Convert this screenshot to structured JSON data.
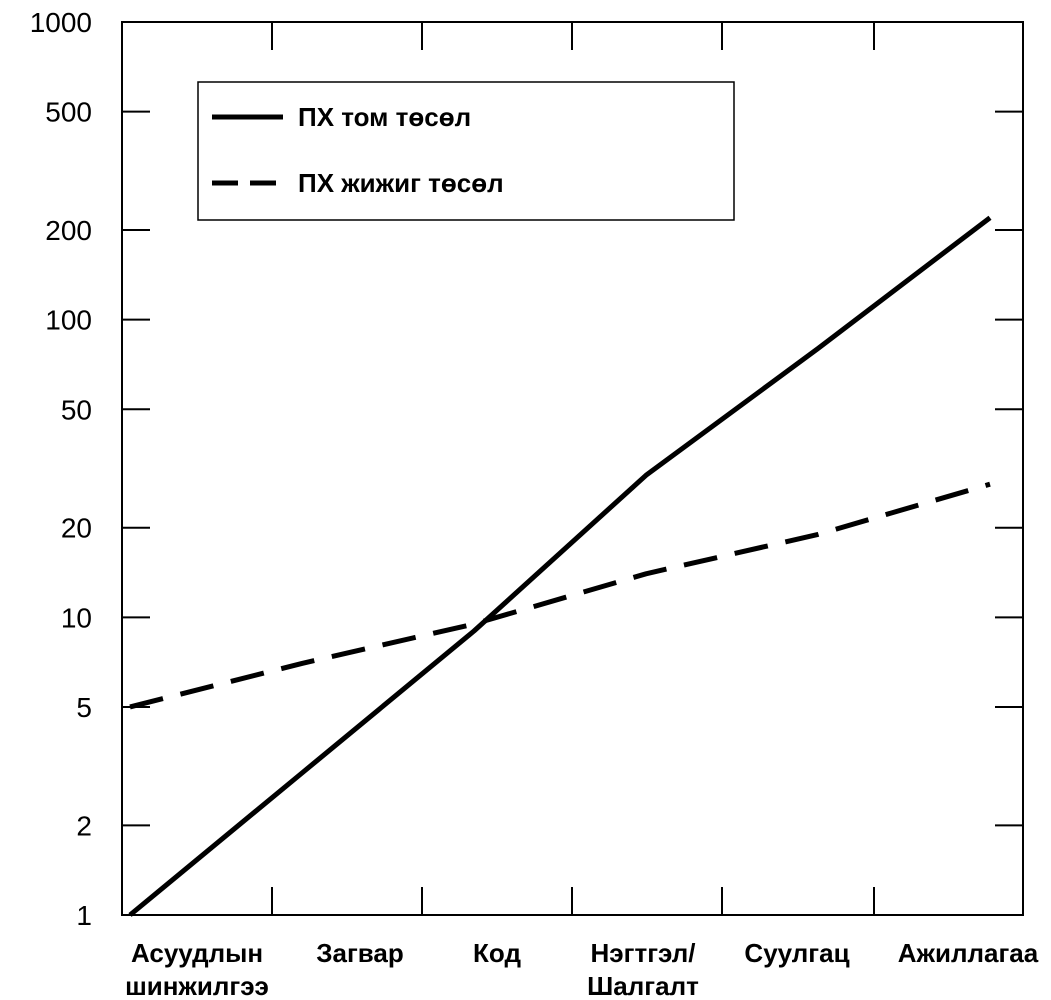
{
  "chart_data": {
    "type": "line",
    "categories": [
      "Асуудлын шинжилгээ",
      "Загвар",
      "Код",
      "Нэгтгэл/ Шалгалт",
      "Суулгац",
      "Ажиллагаа"
    ],
    "category_labels": [
      [
        "Асуудлын",
        "шинжилгээ"
      ],
      [
        "Загвар"
      ],
      [
        "Код"
      ],
      [
        "Нэгтгэл/",
        "Шалгалт"
      ],
      [
        "Суулгац"
      ],
      [
        "Ажиллагаа"
      ]
    ],
    "y_scale": "log",
    "ylim": [
      1,
      1000
    ],
    "y_ticks": [
      1,
      2,
      5,
      10,
      20,
      50,
      100,
      200,
      500,
      1000
    ],
    "grid": false,
    "legend_position": "top-left",
    "series": [
      {
        "name": "ПХ том төсөл",
        "style": "solid",
        "color": "#000000",
        "values": [
          1,
          3,
          9,
          30,
          80,
          220
        ]
      },
      {
        "name": "ПХ жижиг төсөл",
        "style": "dashed",
        "color": "#000000",
        "values": [
          5,
          7,
          9.5,
          14,
          19,
          28
        ]
      }
    ]
  }
}
